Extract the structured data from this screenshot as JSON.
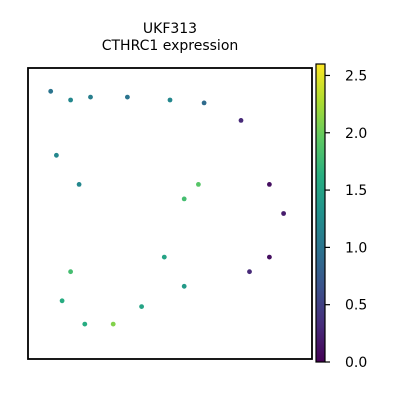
{
  "chart_data": {
    "type": "scatter",
    "title": "UKF313",
    "subtitle": "CTHRC1 expression",
    "xlabel": "",
    "ylabel": "",
    "grid": false,
    "legend": "none",
    "colorbar": {
      "label": "",
      "colormap": "viridis",
      "range": [
        0.0,
        2.6
      ],
      "ticks": [
        0.0,
        0.5,
        1.0,
        1.5,
        2.0,
        2.5
      ],
      "tick_labels": [
        "0.0",
        "0.5",
        "1.0",
        "1.5",
        "2.0",
        "2.5"
      ]
    },
    "points": [
      {
        "x": 0.08,
        "y": 0.92,
        "v": 1.0
      },
      {
        "x": 0.15,
        "y": 0.89,
        "v": 1.2
      },
      {
        "x": 0.22,
        "y": 0.9,
        "v": 1.1
      },
      {
        "x": 0.35,
        "y": 0.9,
        "v": 1.0
      },
      {
        "x": 0.5,
        "y": 0.89,
        "v": 1.2
      },
      {
        "x": 0.62,
        "y": 0.88,
        "v": 0.9
      },
      {
        "x": 0.75,
        "y": 0.82,
        "v": 0.3
      },
      {
        "x": 0.85,
        "y": 0.6,
        "v": 0.1
      },
      {
        "x": 0.9,
        "y": 0.5,
        "v": 0.2
      },
      {
        "x": 0.85,
        "y": 0.35,
        "v": 0.1
      },
      {
        "x": 0.78,
        "y": 0.3,
        "v": 0.3
      },
      {
        "x": 0.55,
        "y": 0.55,
        "v": 1.8
      },
      {
        "x": 0.6,
        "y": 0.6,
        "v": 1.9
      },
      {
        "x": 0.48,
        "y": 0.35,
        "v": 1.5
      },
      {
        "x": 0.15,
        "y": 0.3,
        "v": 1.8
      },
      {
        "x": 0.12,
        "y": 0.2,
        "v": 1.6
      },
      {
        "x": 0.2,
        "y": 0.12,
        "v": 1.6
      },
      {
        "x": 0.3,
        "y": 0.12,
        "v": 2.1
      },
      {
        "x": 0.4,
        "y": 0.18,
        "v": 1.5
      },
      {
        "x": 0.55,
        "y": 0.25,
        "v": 1.4
      },
      {
        "x": 0.18,
        "y": 0.6,
        "v": 1.2
      },
      {
        "x": 0.1,
        "y": 0.7,
        "v": 1.2
      }
    ]
  }
}
